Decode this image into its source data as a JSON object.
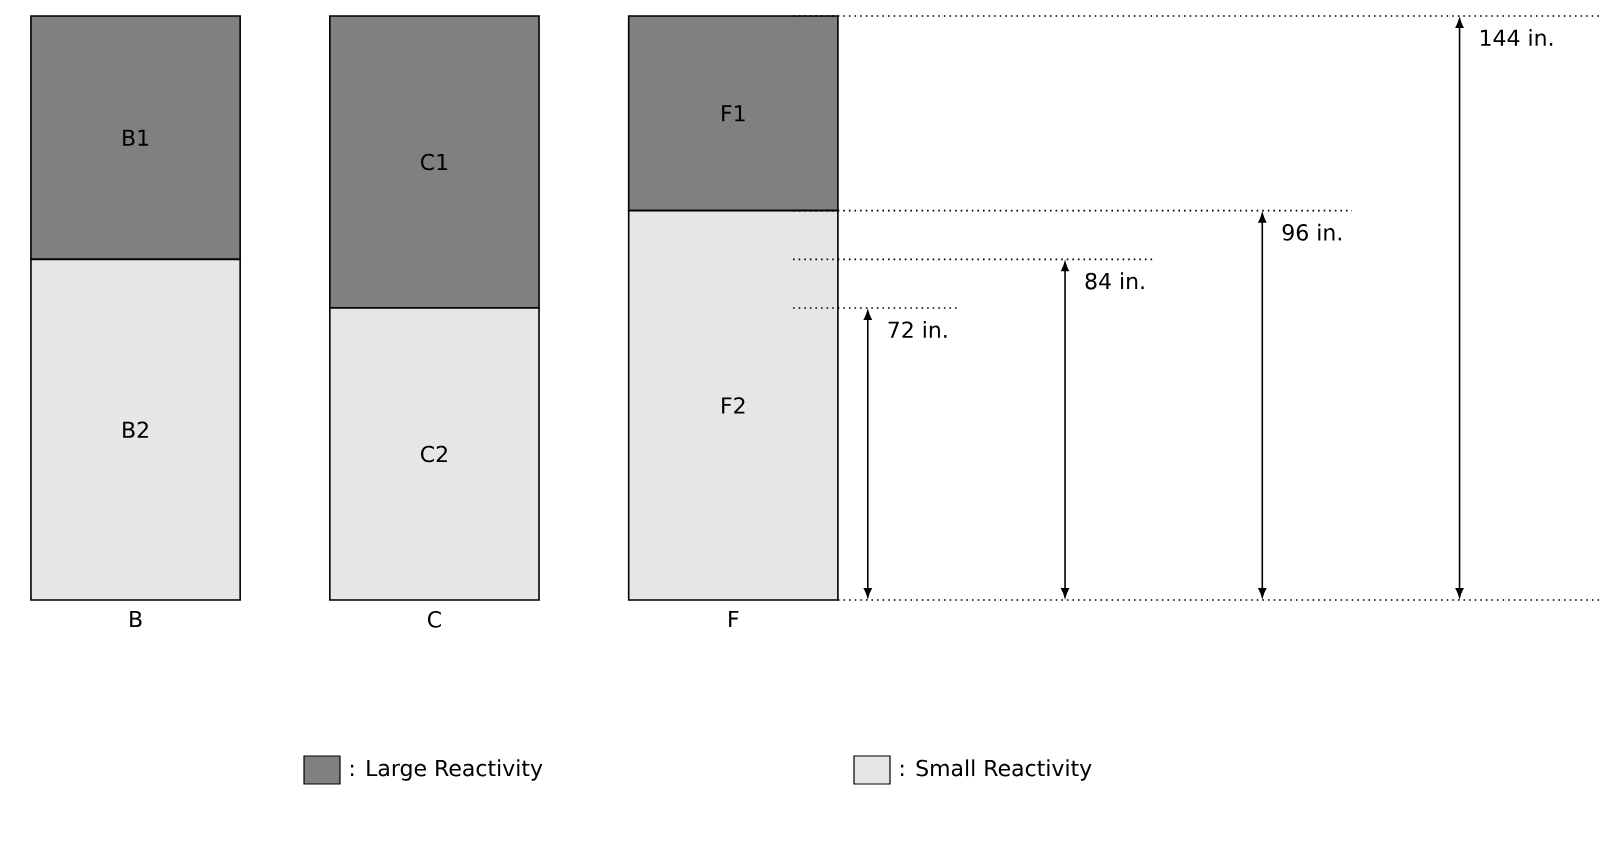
{
  "chart_data": {
    "type": "bar",
    "stacked": true,
    "categories": [
      "B",
      "C",
      "F"
    ],
    "ylim": [
      0,
      144
    ],
    "tick_labels": "x",
    "legend": "bottom",
    "series": [
      {
        "name": ": Small Reactivity",
        "color": "#e6e6e6",
        "values": [
          84,
          72,
          96
        ],
        "value_labels": [
          "B2",
          "C2",
          "F2"
        ]
      },
      {
        "name": ": Large Reactivity",
        "color": "#808080",
        "values": [
          60,
          72,
          48
        ],
        "value_labels": [
          "B1",
          "C1",
          "F1"
        ]
      }
    ],
    "ref_lines": [
      {
        "axis": "y",
        "value": 72,
        "label": "72 in."
      },
      {
        "axis": "y",
        "value": 84,
        "label": "84 in."
      },
      {
        "axis": "y",
        "value": 96,
        "label": "96 in."
      },
      {
        "axis": "y",
        "value": 144,
        "label": "144 in."
      }
    ]
  }
}
